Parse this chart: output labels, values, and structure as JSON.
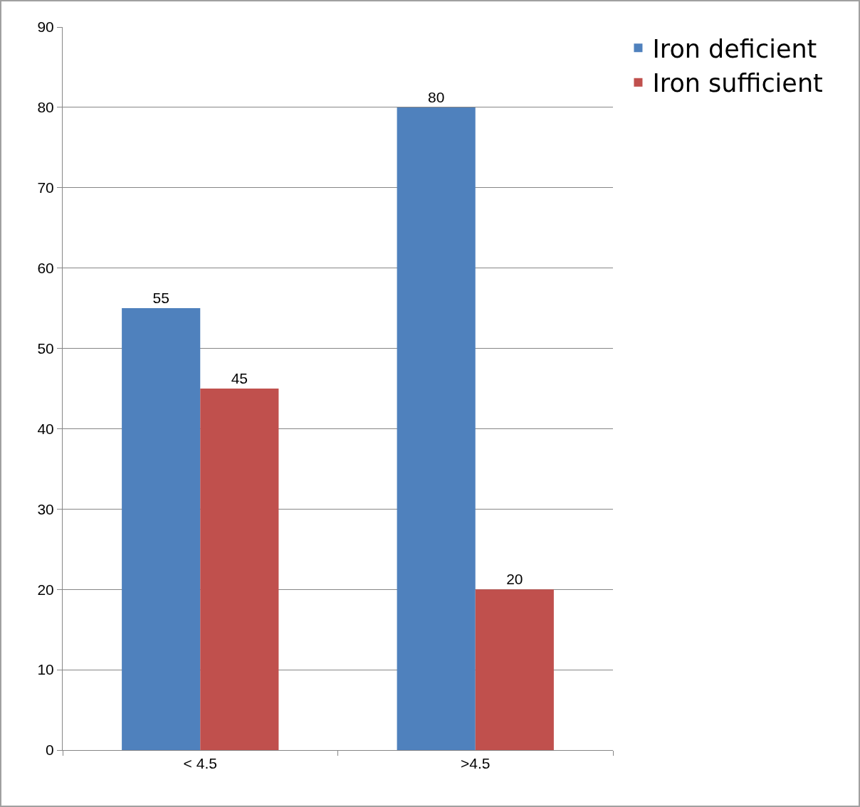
{
  "chart_data": {
    "type": "bar",
    "categories": [
      "< 4.5",
      ">4.5"
    ],
    "series": [
      {
        "name": "Iron deficient",
        "color": "#4f81bd",
        "values": [
          55,
          80
        ]
      },
      {
        "name": "Iron sufficient",
        "color": "#c0504d",
        "values": [
          45,
          20
        ]
      }
    ],
    "ylim": [
      0,
      90
    ],
    "yticks": [
      0,
      10,
      20,
      30,
      40,
      50,
      60,
      70,
      80,
      90
    ],
    "grid": "y",
    "legend": "right",
    "data_labels": true
  }
}
